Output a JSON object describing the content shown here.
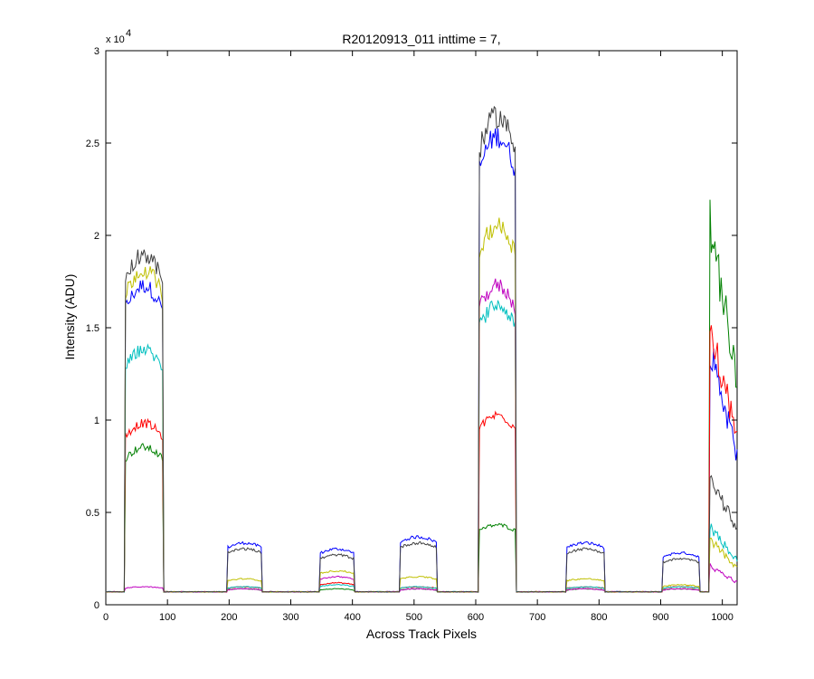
{
  "chart_data": {
    "type": "line",
    "title": "R20120913_011 inttime = 7,",
    "xlabel": "Across Track Pixels",
    "ylabel": "Intensity (ADU)",
    "xlim": [
      0,
      1024
    ],
    "ylim": [
      0,
      30000
    ],
    "y_exponent_label": "x 10",
    "y_exponent": "4",
    "xticks": [
      0,
      100,
      200,
      300,
      400,
      500,
      600,
      700,
      800,
      900,
      1000
    ],
    "xtick_labels": [
      "0",
      "100",
      "200",
      "300",
      "400",
      "500",
      "600",
      "700",
      "800",
      "900",
      "1000"
    ],
    "yticks": [
      0,
      5000,
      10000,
      15000,
      20000,
      25000,
      30000
    ],
    "ytick_labels": [
      "0",
      "0.5",
      "1",
      "1.5",
      "2",
      "2.5",
      "3"
    ],
    "grid": false,
    "legend": "none",
    "baseline": 700,
    "series": [
      {
        "color": "#0000ff",
        "plateaus": [
          [
            31,
            92,
            16000
          ],
          [
            197,
            253,
            3100
          ],
          [
            348,
            402,
            2800
          ],
          [
            477,
            536,
            3400
          ],
          [
            605,
            665,
            23500
          ],
          [
            747,
            808,
            3100
          ],
          [
            903,
            962,
            2600
          ],
          [
            980,
            1024,
            10000
          ]
        ]
      },
      {
        "color": "#008000",
        "plateaus": [
          [
            31,
            92,
            7900
          ],
          [
            197,
            253,
            800
          ],
          [
            348,
            402,
            800
          ],
          [
            477,
            536,
            800
          ],
          [
            605,
            665,
            4000
          ],
          [
            747,
            808,
            800
          ],
          [
            903,
            962,
            800
          ],
          [
            980,
            1024,
            15000
          ]
        ]
      },
      {
        "color": "#ff0000",
        "plateaus": [
          [
            31,
            92,
            9100
          ],
          [
            197,
            253,
            900
          ],
          [
            348,
            402,
            1100
          ],
          [
            477,
            536,
            900
          ],
          [
            605,
            665,
            9500
          ],
          [
            747,
            808,
            900
          ],
          [
            903,
            962,
            900
          ],
          [
            980,
            1024,
            11000
          ]
        ]
      },
      {
        "color": "#00bfbf",
        "plateaus": [
          [
            31,
            92,
            12800
          ],
          [
            197,
            253,
            900
          ],
          [
            348,
            402,
            1000
          ],
          [
            477,
            536,
            900
          ],
          [
            605,
            665,
            15000
          ],
          [
            747,
            808,
            900
          ],
          [
            903,
            962,
            900
          ],
          [
            980,
            1024,
            3000
          ]
        ]
      },
      {
        "color": "#bf00bf",
        "plateaus": [
          [
            31,
            92,
            900
          ],
          [
            197,
            253,
            800
          ],
          [
            348,
            402,
            1400
          ],
          [
            477,
            536,
            800
          ],
          [
            605,
            665,
            16000
          ],
          [
            747,
            808,
            800
          ],
          [
            903,
            962,
            800
          ],
          [
            980,
            1024,
            1500
          ]
        ]
      },
      {
        "color": "#bfbf00",
        "plateaus": [
          [
            31,
            92,
            16800
          ],
          [
            197,
            253,
            1300
          ],
          [
            348,
            402,
            1700
          ],
          [
            477,
            536,
            1400
          ],
          [
            605,
            665,
            19000
          ],
          [
            747,
            808,
            1300
          ],
          [
            903,
            962,
            1000
          ],
          [
            980,
            1024,
            2500
          ]
        ]
      },
      {
        "color": "#404040",
        "plateaus": [
          [
            31,
            92,
            17600
          ],
          [
            197,
            253,
            2800
          ],
          [
            348,
            402,
            2500
          ],
          [
            477,
            536,
            3100
          ],
          [
            605,
            665,
            24500
          ],
          [
            747,
            808,
            2800
          ],
          [
            903,
            962,
            2300
          ],
          [
            980,
            1024,
            5000
          ]
        ]
      }
    ]
  }
}
